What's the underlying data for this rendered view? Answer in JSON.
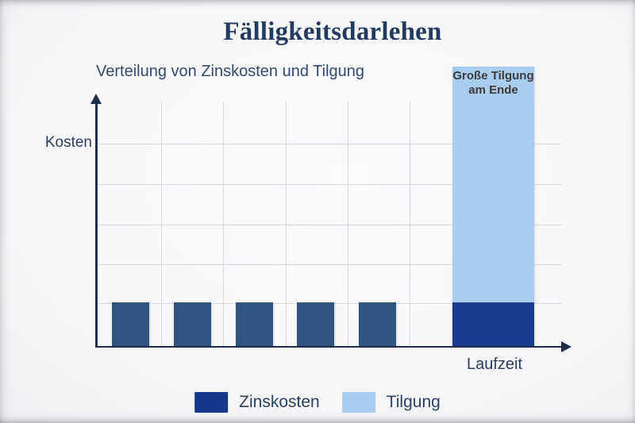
{
  "chart_data": {
    "type": "bar",
    "stacked": true,
    "title": "Fälligkeitsdarlehen",
    "subtitle": "Verteilung von Zinskosten und Tilgung",
    "xlabel": "Laufzeit",
    "ylabel": "Kosten",
    "annotation_lines": [
      "Große Tilgung",
      "am Ende"
    ],
    "annotation_text": "Große Tilgung am Ende",
    "n_bars": 6,
    "x_tick_labels_visible": false,
    "y_tick_labels_visible": false,
    "units": "relative (no numeric axis ticks shown; values in multiples of one period's interest cost)",
    "series": [
      {
        "name": "Zinskosten",
        "values": [
          1,
          1,
          1,
          1,
          1,
          1
        ]
      },
      {
        "name": "Tilgung",
        "values": [
          0,
          0,
          0,
          0,
          0,
          5.3
        ]
      }
    ],
    "grid": true,
    "legend": {
      "position": "bottom-center",
      "items": [
        {
          "label": "Zinskosten",
          "color": "#17378a"
        },
        {
          "label": "Tilgung",
          "color": "#a9cdee"
        }
      ]
    }
  },
  "colors": {
    "background": "#f8f8fa",
    "title_text": "#243a61",
    "subtitle_text": "#33496e",
    "axis_line": "#202e4e",
    "axis_label_text": "#2b3e5e",
    "gridline": "#d7dbe2",
    "zinskosten_bars_regular": "#31547e",
    "zinskosten_bar_final": "#1a3b8e",
    "tilgung_bar": "#a9cdee",
    "annotation_text": "#3b3b3d",
    "legend_text": "#2d4160"
  }
}
